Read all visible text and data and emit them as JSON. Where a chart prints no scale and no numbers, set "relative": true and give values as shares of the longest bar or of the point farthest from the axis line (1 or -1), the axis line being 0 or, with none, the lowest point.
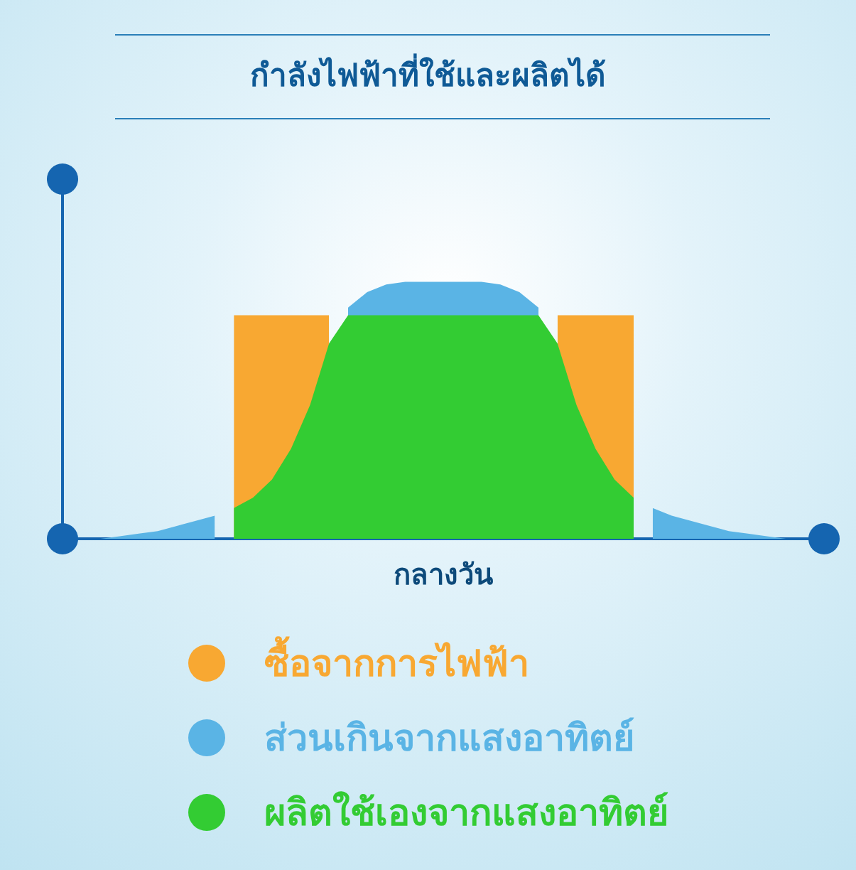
{
  "chart_data": {
    "type": "area",
    "title": "กำลังไฟฟ้าที่ใช้และผลิตได้",
    "xlabel": "กลางวัน",
    "relative": true,
    "tick_labels": false,
    "grid": false,
    "legend": "bottom",
    "categories": [
      null,
      null,
      null,
      null,
      null,
      null,
      null,
      null,
      null,
      null,
      null,
      null,
      null,
      null,
      null,
      null,
      null,
      null,
      null,
      null,
      null,
      null,
      null,
      null,
      null,
      null,
      null,
      null,
      null,
      null,
      null,
      null,
      null,
      null,
      null,
      null,
      null,
      null,
      null,
      null,
      null
    ],
    "series": [
      {
        "name": "ซื้อจากการไฟฟ้า",
        "color": "#f8a832",
        "values": [
          null,
          null,
          null,
          null,
          null,
          null,
          null,
          null,
          null,
          0.87,
          0.87,
          0.87,
          0.87,
          0.87,
          0.87,
          null,
          null,
          null,
          null,
          null,
          null,
          null,
          null,
          null,
          null,
          null,
          0.87,
          0.87,
          0.87,
          0.87,
          0.87,
          null,
          null,
          null,
          null,
          null,
          null,
          null,
          null,
          null,
          null
        ]
      },
      {
        "name": "ส่วนเกินจากแสงอาทิตย์",
        "color": "#5ab4e5",
        "values": [
          null,
          0,
          0,
          0.01,
          0.02,
          0.03,
          0.05,
          0.07,
          0.09,
          null,
          null,
          null,
          null,
          null,
          null,
          0.9,
          0.96,
          0.99,
          1,
          1,
          1,
          1,
          1,
          0.99,
          0.96,
          0.9,
          null,
          null,
          null,
          null,
          null,
          0.12,
          0.09,
          0.07,
          0.05,
          0.03,
          0.02,
          0.01,
          0,
          0,
          null
        ]
      },
      {
        "name": "ผลิตใช้เองจากแสงอาทิตย์",
        "color": "#33cc33",
        "values": [
          null,
          null,
          null,
          null,
          null,
          null,
          null,
          null,
          null,
          0.12,
          0.16,
          0.23,
          0.35,
          0.52,
          0.76,
          0.87,
          0.87,
          0.87,
          0.87,
          0.87,
          0.87,
          0.87,
          0.87,
          0.87,
          0.87,
          0.87,
          0.76,
          0.52,
          0.35,
          0.23,
          0.16,
          null,
          null,
          null,
          null,
          null,
          null,
          null,
          null,
          null,
          null
        ]
      }
    ]
  }
}
